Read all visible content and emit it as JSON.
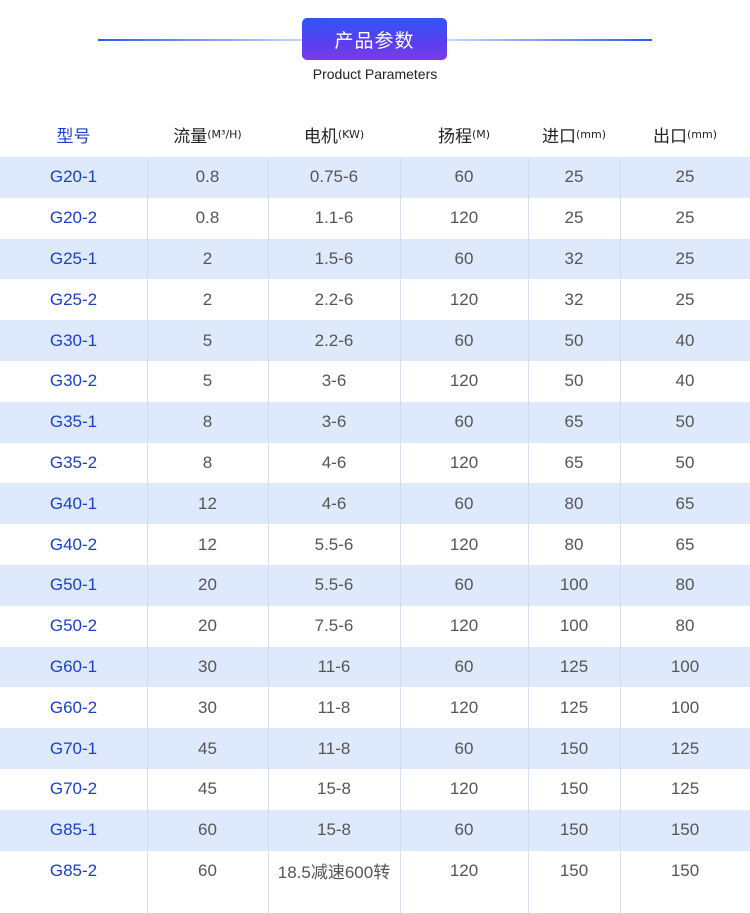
{
  "header": {
    "title": "产品参数",
    "subtitle": "Product Parameters",
    "accent_color": "#2f57f5"
  },
  "table": {
    "columns": [
      {
        "main": "型号",
        "unit": ""
      },
      {
        "main": "流量",
        "unit": "(M³/H)"
      },
      {
        "main": "电机",
        "unit": "(KW)"
      },
      {
        "main": "扬程",
        "unit": "(M)"
      },
      {
        "main": "进口",
        "unit": "(mm)"
      },
      {
        "main": "出口",
        "unit": "(mm)"
      }
    ],
    "rows": [
      [
        "G20-1",
        "0.8",
        "0.75-6",
        "60",
        "25",
        "25"
      ],
      [
        "G20-2",
        "0.8",
        "1.1-6",
        "120",
        "25",
        "25"
      ],
      [
        "G25-1",
        "2",
        "1.5-6",
        "60",
        "32",
        "25"
      ],
      [
        "G25-2",
        "2",
        "2.2-6",
        "120",
        "32",
        "25"
      ],
      [
        "G30-1",
        "5",
        "2.2-6",
        "60",
        "50",
        "40"
      ],
      [
        "G30-2",
        "5",
        "3-6",
        "120",
        "50",
        "40"
      ],
      [
        "G35-1",
        "8",
        "3-6",
        "60",
        "65",
        "50"
      ],
      [
        "G35-2",
        "8",
        "4-6",
        "120",
        "65",
        "50"
      ],
      [
        "G40-1",
        "12",
        "4-6",
        "60",
        "80",
        "65"
      ],
      [
        "G40-2",
        "12",
        "5.5-6",
        "120",
        "80",
        "65"
      ],
      [
        "G50-1",
        "20",
        "5.5-6",
        "60",
        "100",
        "80"
      ],
      [
        "G50-2",
        "20",
        "7.5-6",
        "120",
        "100",
        "80"
      ],
      [
        "G60-1",
        "30",
        "11-6",
        "60",
        "125",
        "100"
      ],
      [
        "G60-2",
        "30",
        "11-8",
        "120",
        "125",
        "100"
      ],
      [
        "G70-1",
        "45",
        "11-8",
        "60",
        "150",
        "125"
      ],
      [
        "G70-2",
        "45",
        "15-8",
        "120",
        "150",
        "125"
      ],
      [
        "G85-1",
        "60",
        "15-8",
        "60",
        "150",
        "150"
      ],
      [
        "G85-2",
        "60",
        "18.5减速600转",
        "120",
        "150",
        "150"
      ]
    ]
  }
}
